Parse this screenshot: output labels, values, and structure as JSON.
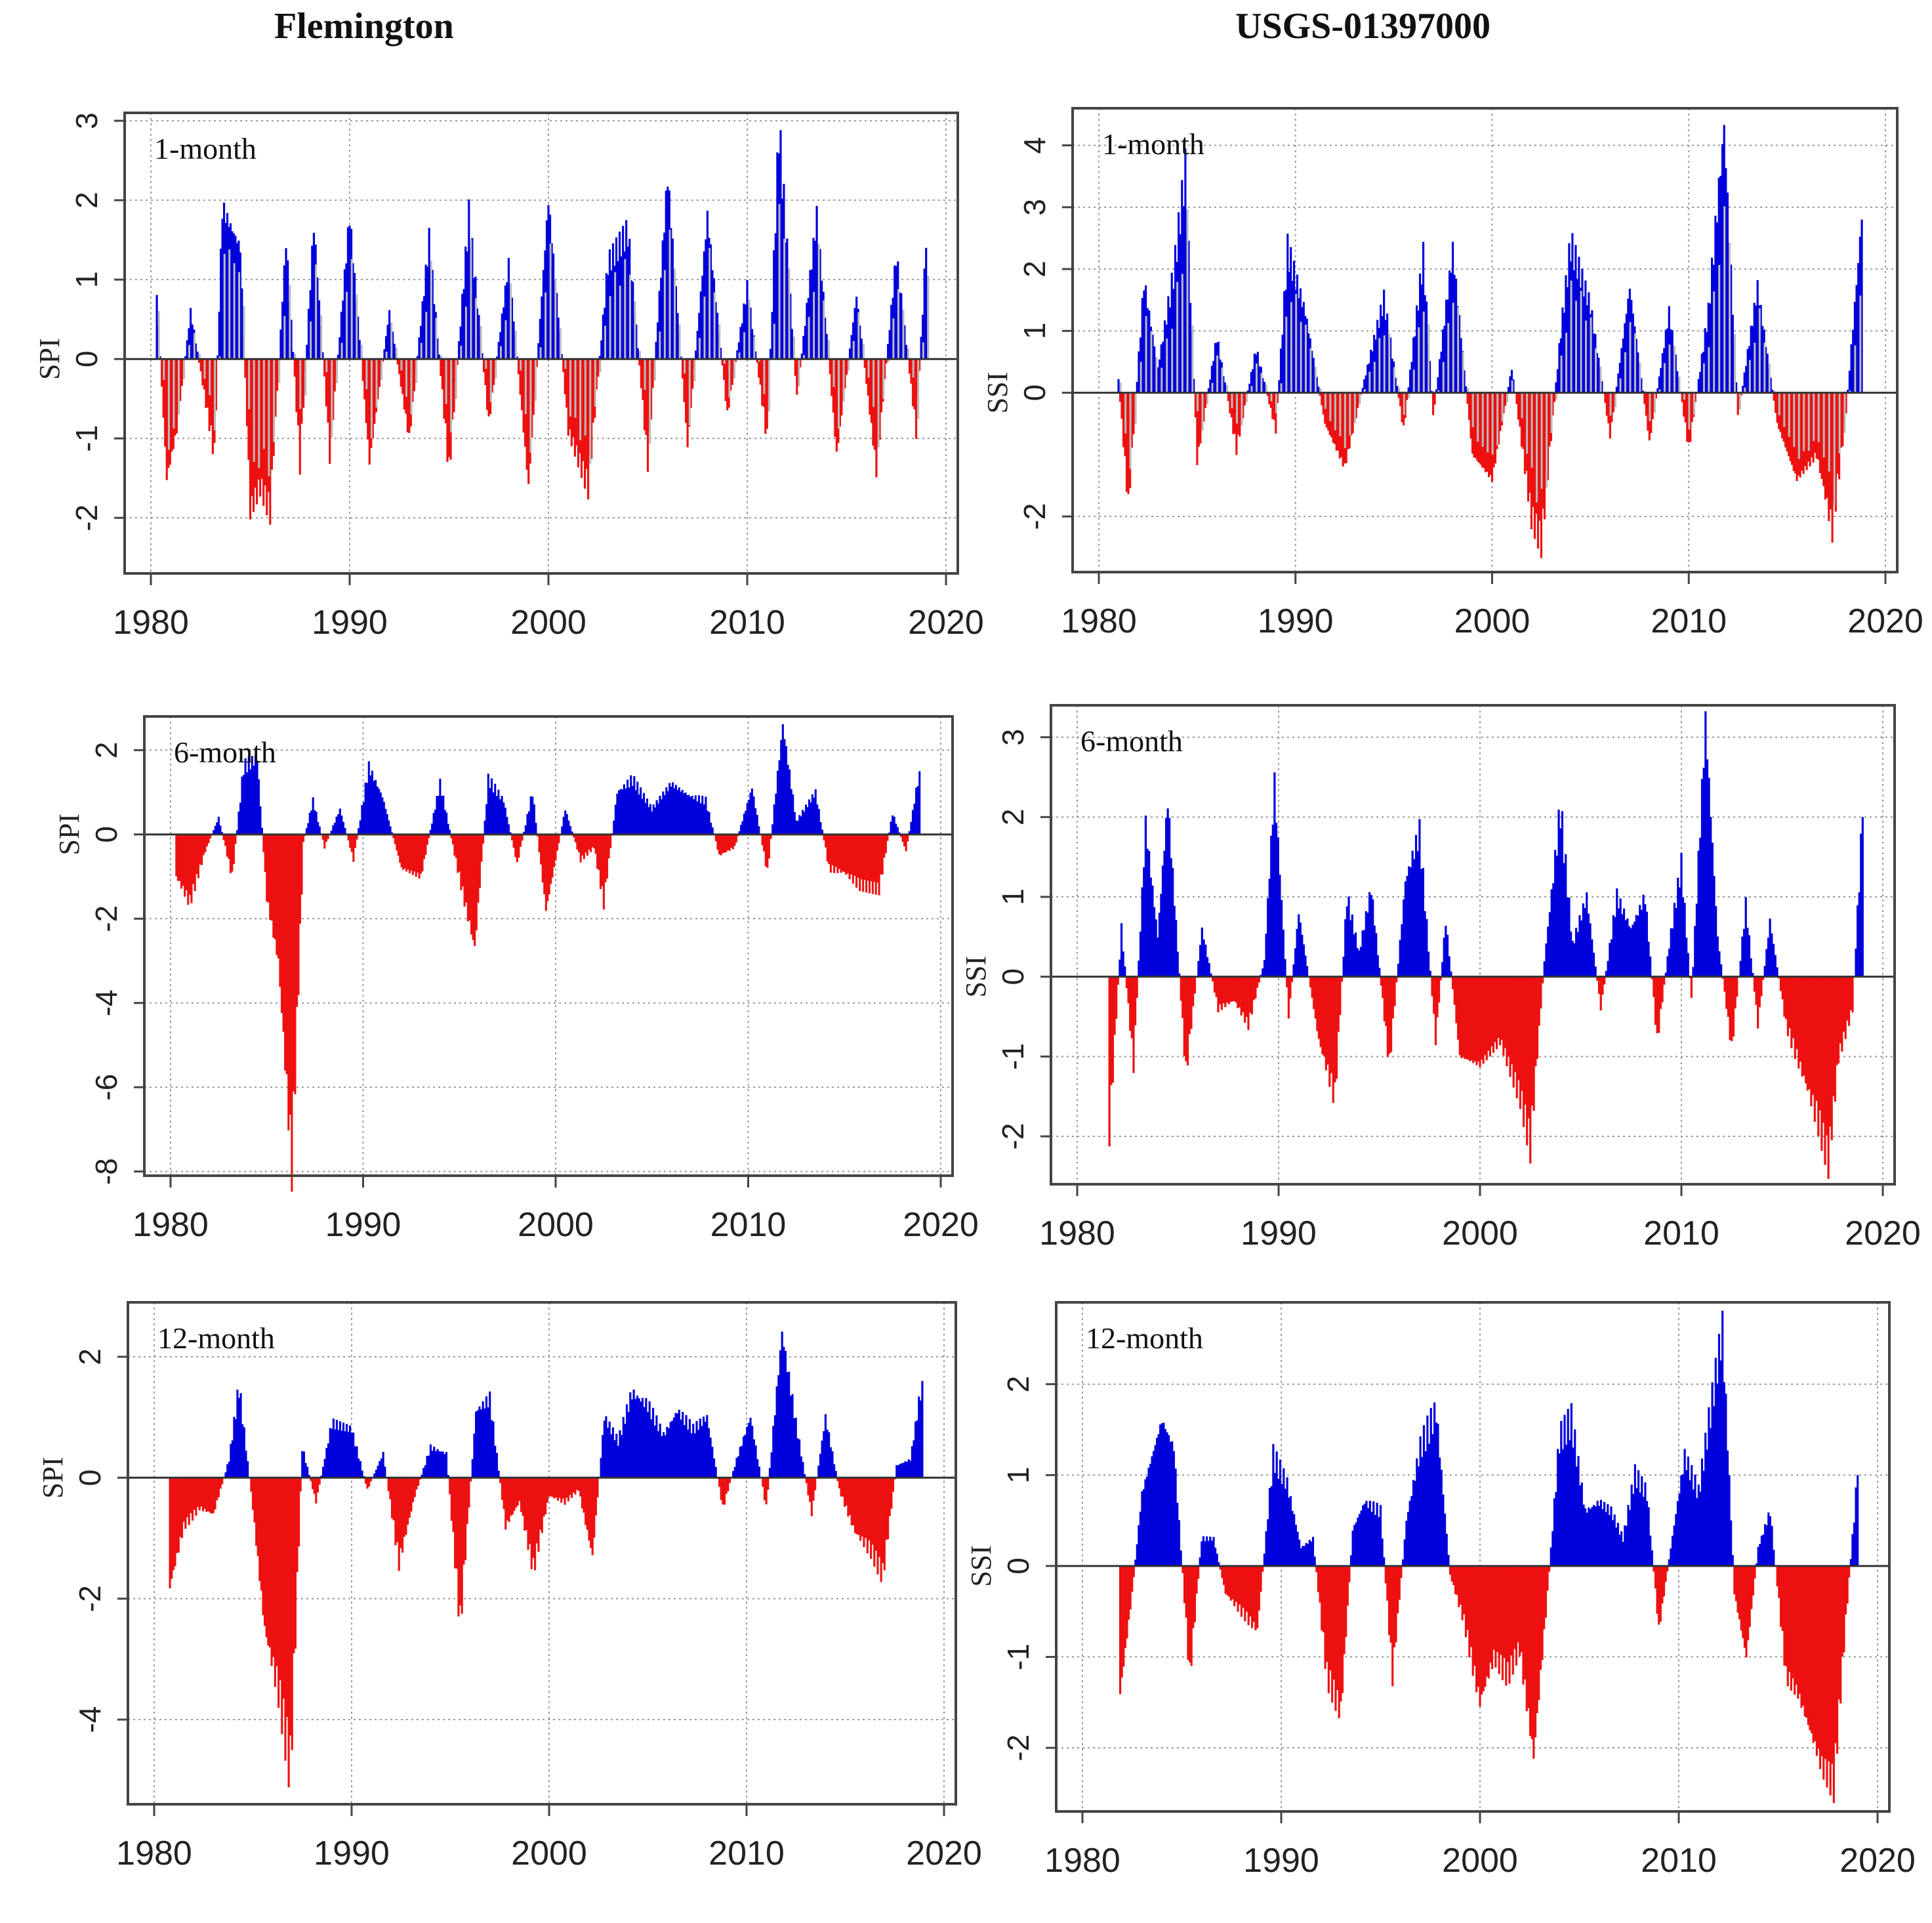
{
  "titles": {
    "left": "Flemington",
    "right": "USGS-01397000"
  },
  "colors": {
    "positive": "#0000dd",
    "negative": "#ee1111",
    "faint": "#bbbbbb",
    "axis": "#444444",
    "grid": "#999999"
  },
  "chart_data": [
    {
      "id": "p1",
      "type": "area",
      "title": "Flemington",
      "label": "1-month",
      "ylabel": "SPI",
      "xlim": [
        1980,
        2020
      ],
      "ylim": [
        -2.7,
        3.1
      ],
      "yticks": [
        -2,
        -1,
        0,
        1,
        2,
        3
      ],
      "xticks": [
        1980,
        1990,
        2000,
        2010,
        2020
      ],
      "x": [
        1980.3,
        1980.8,
        1981.3,
        1982.0,
        1983.2,
        1983.6,
        1984.5,
        1985.0,
        1985.5,
        1986.0,
        1986.8,
        1987.5,
        1988.2,
        1989.0,
        1990.0,
        1991.0,
        1992.0,
        1993.0,
        1994.0,
        1995.0,
        1996.0,
        1997.0,
        1998.0,
        1999.0,
        2000.0,
        2001.0,
        2002.0,
        2003.0,
        2004.0,
        2005.0,
        2006.0,
        2007.0,
        2008.0,
        2009.0,
        2010.0,
        2011.0,
        2011.6,
        2012.5,
        2013.5,
        2014.5,
        2015.5,
        2016.5,
        2017.5,
        2018.5,
        2019.0
      ],
      "values": [
        0.8,
        -1.5,
        -0.9,
        0.6,
        -1.2,
        1.9,
        1.4,
        -1.9,
        -1.6,
        -1.9,
        1.5,
        -1.3,
        1.7,
        -1.2,
        1.8,
        -1.3,
        0.6,
        -1.0,
        1.5,
        -1.4,
        1.8,
        -0.8,
        1.2,
        -1.6,
        2.0,
        -0.9,
        -1.6,
        1.2,
        1.6,
        -1.3,
        2.3,
        -1.1,
        1.8,
        -0.7,
        0.9,
        -1.0,
        2.9,
        -0.5,
        1.8,
        -1.2,
        0.8,
        -1.4,
        1.3,
        -0.9,
        1.4
      ]
    },
    {
      "id": "p2",
      "type": "area",
      "title": "USGS-01397000",
      "label": "1-month",
      "ylabel": "SSI",
      "xlim": [
        1980,
        2020
      ],
      "ylim": [
        -2.9,
        4.6
      ],
      "yticks": [
        -2,
        0,
        1,
        2,
        3,
        4
      ],
      "xticks": [
        1980,
        1990,
        2000,
        2010,
        2020
      ],
      "x": [
        1981.0,
        1981.5,
        1982.3,
        1983.0,
        1983.8,
        1984.4,
        1985.0,
        1986.0,
        1987.0,
        1988.0,
        1989.0,
        1989.6,
        1990.5,
        1991.5,
        1992.5,
        1993.5,
        1994.5,
        1995.5,
        1996.5,
        1997.0,
        1998.0,
        1999.0,
        2000.0,
        2001.0,
        2002.0,
        2002.5,
        2003.5,
        2004.0,
        2005.0,
        2006.0,
        2007.0,
        2008.0,
        2009.0,
        2010.0,
        2011.0,
        2011.8,
        2012.5,
        2013.5,
        2014.5,
        2015.5,
        2016.5,
        2017.3,
        2018.0,
        2018.8
      ],
      "values": [
        0.2,
        -1.8,
        1.8,
        0.4,
        1.9,
        3.6,
        -1.1,
        0.9,
        -0.9,
        0.7,
        -0.6,
        2.3,
        1.3,
        -0.5,
        -1.2,
        0.2,
        1.5,
        -0.6,
        2.2,
        -0.4,
        2.3,
        -1.0,
        -1.4,
        0.4,
        -2.0,
        -2.4,
        1.0,
        2.4,
        1.4,
        -0.7,
        1.7,
        -0.8,
        1.3,
        -0.9,
        1.3,
        4.3,
        -0.4,
        1.7,
        -0.5,
        -1.4,
        -1.0,
        -2.2,
        -0.3,
        2.8
      ]
    },
    {
      "id": "p3",
      "type": "area",
      "title": "Flemington",
      "label": "6-month",
      "ylabel": "SPI",
      "xlim": [
        1980,
        2020
      ],
      "ylim": [
        -8.1,
        2.8
      ],
      "yticks": [
        -8,
        -6,
        -4,
        -2,
        0,
        2
      ],
      "xticks": [
        1980,
        1990,
        2000,
        2010,
        2020
      ],
      "x": [
        1980.3,
        1981.0,
        1981.8,
        1982.5,
        1983.2,
        1983.8,
        1984.5,
        1985.0,
        1985.6,
        1986.3,
        1986.9,
        1987.4,
        1988.0,
        1988.8,
        1989.5,
        1990.3,
        1991.0,
        1992.0,
        1993.0,
        1994.0,
        1995.0,
        1995.8,
        1996.5,
        1997.3,
        1998.0,
        1998.8,
        1999.5,
        2000.5,
        2001.3,
        2002.0,
        2002.5,
        2003.2,
        2004.0,
        2005.0,
        2006.0,
        2007.0,
        2007.8,
        2008.5,
        2009.3,
        2010.2,
        2011.0,
        2011.8,
        2012.5,
        2013.5,
        2014.2,
        2015.0,
        2015.8,
        2016.8,
        2017.5,
        2018.2,
        2018.9
      ],
      "values": [
        -1.0,
        -1.6,
        -0.4,
        0.4,
        -1.0,
        1.6,
        1.8,
        -1.5,
        -3.0,
        -7.8,
        -0.2,
        0.8,
        -0.3,
        0.6,
        -0.6,
        1.6,
        0.9,
        -0.8,
        -1.0,
        1.2,
        -1.0,
        -2.7,
        1.3,
        0.8,
        -0.7,
        1.0,
        -1.8,
        0.6,
        -0.6,
        -0.3,
        -1.6,
        1.0,
        1.3,
        0.6,
        1.2,
        0.9,
        0.8,
        -0.5,
        -0.3,
        1.1,
        -0.9,
        2.6,
        0.3,
        1.0,
        -0.8,
        -0.9,
        -1.2,
        -1.3,
        0.5,
        -0.4,
        1.5
      ]
    },
    {
      "id": "p4",
      "type": "area",
      "title": "USGS-01397000",
      "label": "6-month",
      "ylabel": "SSI",
      "xlim": [
        1980,
        2020
      ],
      "ylim": [
        -2.6,
        3.4
      ],
      "yticks": [
        -2,
        -1,
        0,
        1,
        2,
        3
      ],
      "xticks": [
        1980,
        1990,
        2000,
        2010,
        2020
      ],
      "x": [
        1981.6,
        1982.2,
        1982.8,
        1983.4,
        1984.0,
        1984.5,
        1985.4,
        1986.2,
        1987.0,
        1987.8,
        1988.5,
        1989.3,
        1989.8,
        1990.5,
        1991.0,
        1992.0,
        1992.8,
        1993.4,
        1994.0,
        1994.6,
        1995.5,
        1996.3,
        1997.0,
        1997.8,
        1998.3,
        1999.0,
        2000.0,
        2001.0,
        2002.0,
        2002.5,
        2003.2,
        2004.0,
        2004.6,
        2005.3,
        2006.0,
        2006.8,
        2007.5,
        2008.2,
        2008.8,
        2009.4,
        2010.0,
        2010.5,
        2011.2,
        2011.8,
        2012.5,
        2013.2,
        2013.8,
        2014.4,
        2015.2,
        2016.0,
        2016.8,
        2017.3,
        2017.8,
        2018.5,
        2019.0
      ],
      "values": [
        -1.9,
        0.6,
        -1.1,
        1.9,
        0.5,
        2.2,
        -1.2,
        0.6,
        -0.4,
        -0.3,
        -0.6,
        0.2,
        2.4,
        -0.5,
        0.8,
        -0.8,
        -1.5,
        1.0,
        0.3,
        1.1,
        -1.1,
        1.2,
        1.8,
        -0.8,
        0.7,
        -1.0,
        -1.1,
        -0.8,
        -1.5,
        -2.1,
        0.2,
        2.1,
        0.4,
        1.0,
        -0.4,
        1.0,
        0.6,
        1.0,
        -0.8,
        0.4,
        1.4,
        -0.3,
        3.2,
        0.5,
        -0.9,
        0.9,
        -0.6,
        0.7,
        -0.6,
        -1.2,
        -1.8,
        -2.3,
        -1.0,
        -0.4,
        2.0
      ]
    },
    {
      "id": "p5",
      "type": "area",
      "title": "Flemington",
      "label": "12-month",
      "ylabel": "SPI",
      "xlim": [
        1980,
        2020
      ],
      "ylim": [
        -5.4,
        2.9
      ],
      "yticks": [
        -4,
        -2,
        0,
        2
      ],
      "xticks": [
        1980,
        1990,
        2000,
        2010,
        2020
      ],
      "x": [
        1980.8,
        1981.5,
        1982.3,
        1983.0,
        1983.8,
        1984.3,
        1985.0,
        1985.6,
        1986.3,
        1986.9,
        1987.5,
        1988.2,
        1989.0,
        1990.0,
        1990.8,
        1991.6,
        1992.4,
        1993.2,
        1994.0,
        1994.8,
        1995.5,
        1996.3,
        1997.0,
        1997.8,
        1998.5,
        1999.2,
        2000.0,
        2000.8,
        2001.5,
        2002.2,
        2002.8,
        2003.5,
        2004.2,
        2005.0,
        2005.8,
        2006.5,
        2007.3,
        2008.0,
        2008.8,
        2009.5,
        2010.2,
        2011.0,
        2011.8,
        2012.5,
        2013.3,
        2014.0,
        2014.7,
        2015.5,
        2016.3,
        2016.9,
        2017.6,
        2018.3,
        2018.9
      ],
      "values": [
        -1.8,
        -0.8,
        -0.5,
        -0.6,
        0.3,
        1.5,
        -0.5,
        -2.5,
        -3.5,
        -4.8,
        0.5,
        -0.4,
        0.9,
        0.8,
        -0.2,
        0.4,
        -1.4,
        -0.3,
        0.5,
        0.4,
        -2.4,
        1.1,
        1.3,
        -0.8,
        -0.4,
        -1.5,
        -0.3,
        -0.4,
        -0.2,
        -1.3,
        1.0,
        0.6,
        1.4,
        1.2,
        0.7,
        1.1,
        0.8,
        1.0,
        -0.5,
        0.3,
        1.0,
        -0.5,
        2.4,
        0.9,
        -0.6,
        1.0,
        -0.2,
        -0.9,
        -1.2,
        -1.6,
        0.2,
        0.3,
        1.6
      ]
    },
    {
      "id": "p6",
      "type": "area",
      "title": "USGS-01397000",
      "label": "12-month",
      "ylabel": "SSI",
      "xlim": [
        1980,
        2020
      ],
      "ylim": [
        -2.7,
        2.9
      ],
      "yticks": [
        -2,
        -1,
        0,
        1,
        2
      ],
      "xticks": [
        1980,
        1990,
        2000,
        2010,
        2020
      ],
      "x": [
        1981.9,
        1982.5,
        1983.0,
        1983.5,
        1984.0,
        1984.6,
        1985.4,
        1986.0,
        1986.6,
        1987.2,
        1988.0,
        1988.8,
        1989.6,
        1990.3,
        1991.0,
        1991.6,
        1992.3,
        1993.0,
        1993.6,
        1994.2,
        1995.0,
        1995.6,
        1996.3,
        1997.0,
        1997.8,
        1998.5,
        1999.2,
        2000.0,
        2000.7,
        2001.4,
        2002.0,
        2002.7,
        2003.4,
        2004.0,
        2004.6,
        2005.3,
        2006.0,
        2006.6,
        2007.2,
        2007.8,
        2008.4,
        2009.0,
        2009.6,
        2010.3,
        2011.0,
        2011.6,
        2012.2,
        2012.8,
        2013.4,
        2014.0,
        2014.6,
        2015.4,
        2016.0,
        2016.6,
        2017.2,
        2017.8,
        2018.4,
        2019.0
      ],
      "values": [
        -1.4,
        -0.3,
        0.8,
        1.2,
        1.6,
        1.3,
        -1.2,
        0.3,
        0.3,
        -0.3,
        -0.5,
        -0.7,
        1.2,
        0.9,
        0.2,
        0.3,
        -1.2,
        -1.6,
        0.4,
        0.7,
        0.6,
        -1.2,
        0.5,
        1.3,
        1.7,
        -0.1,
        -0.6,
        -1.5,
        -1.0,
        -1.2,
        -0.9,
        -2.1,
        -0.3,
        1.4,
        1.6,
        0.6,
        0.7,
        0.6,
        0.3,
        1.0,
        0.8,
        -0.7,
        0.2,
        1.2,
        0.8,
        1.7,
        2.6,
        -0.3,
        -1.0,
        0.2,
        0.6,
        -1.2,
        -1.4,
        -1.8,
        -2.2,
        -2.4,
        -0.6,
        1.0
      ]
    }
  ]
}
